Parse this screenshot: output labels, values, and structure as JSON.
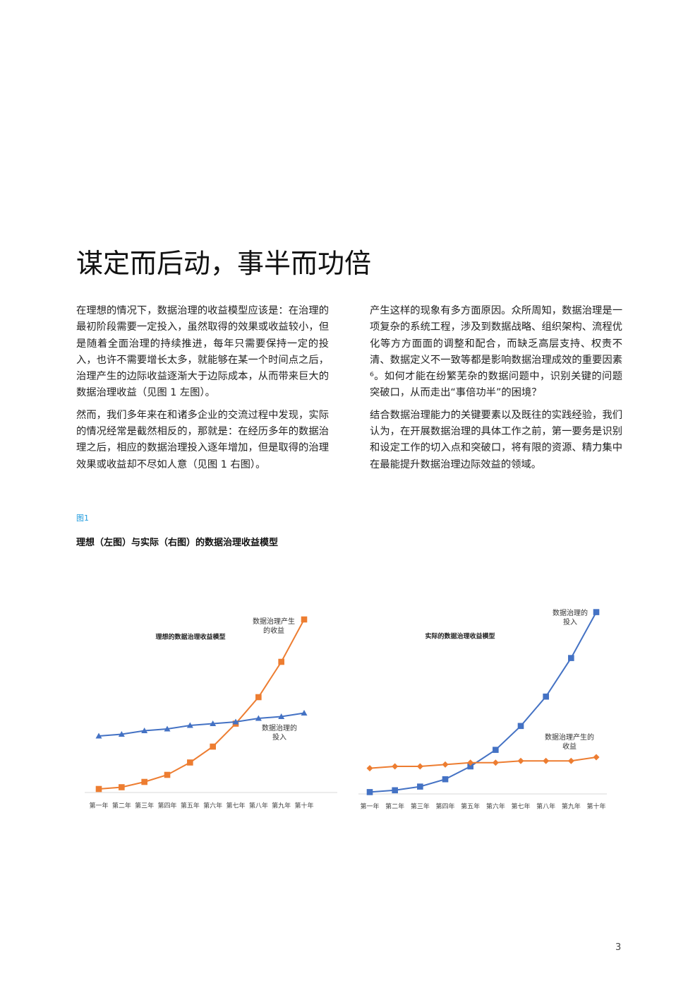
{
  "title": "谋定而后动，事半而功倍",
  "columns": [
    {
      "paragraphs": [
        "在理想的情况下，数据治理的收益模型应该是：在治理的最初阶段需要一定投入，虽然取得的效果或收益较小，但是随着全面治理的持续推进，每年只需要保持一定的投入，也许不需要增长太多，就能够在某一个时间点之后，治理产生的边际收益逐渐大于边际成本，从而带来巨大的数据治理收益（见图 1 左图）。",
        "然而，我们多年来在和诸多企业的交流过程中发现，实际的情况经常是截然相反的，那就是：在经历多年的数据治理之后，相应的数据治理投入逐年增加，但是取得的治理效果或收益却不尽如人意（见图 1 右图）。"
      ]
    },
    {
      "paragraphs": [
        "产生这样的现象有多方面原因。众所周知，数据治理是一项复杂的系统工程，涉及到数据战略、组织架构、流程优化等方方面面的调整和配合，而缺乏高层支持、权责不清、数据定义不一致等都是影响数据治理成效的重要因素⁶。如何才能在纷繁芜杂的数据问题中，识别关键的问题突破口，从而走出“事倍功半”的困境？",
        "结合数据治理能力的关键要素以及既往的实践经验，我们认为，在开展数据治理的具体工作之前，第一要务是识别和设定工作的切入点和突破口，将有限的资源、精力集中在最能提升数据治理边际效益的领域。"
      ]
    }
  ],
  "figure": {
    "label": "图1",
    "caption": "理想（左图）与实际（右图）的数据治理收益模型"
  },
  "chart_data": [
    {
      "type": "line",
      "title": "理想的数据治理收益模型",
      "categories": [
        "第一年",
        "第二年",
        "第三年",
        "第四年",
        "第五年",
        "第六年",
        "第七年",
        "第八年",
        "第九年",
        "第十年"
      ],
      "series": [
        {
          "name": "数据治理产生的收益",
          "color": "#ed7d31",
          "marker": "square",
          "values": [
            2,
            3,
            6,
            10,
            17,
            26,
            39,
            54,
            74,
            98
          ]
        },
        {
          "name": "数据治理的投入",
          "color": "#4472c4",
          "marker": "triangle",
          "values": [
            32,
            33,
            35,
            36,
            38,
            39,
            40,
            42,
            43,
            45
          ]
        }
      ],
      "ylim": [
        0,
        100
      ]
    },
    {
      "type": "line",
      "title": "实际的数据治理收益模型",
      "categories": [
        "第一年",
        "第二年",
        "第三年",
        "第四年",
        "第五年",
        "第六年",
        "第七年",
        "第八年",
        "第九年",
        "第十年"
      ],
      "series": [
        {
          "name": "数据治理的投入",
          "color": "#4472c4",
          "marker": "square",
          "values": [
            1,
            2,
            4,
            8,
            15,
            24,
            37,
            53,
            74,
            99
          ]
        },
        {
          "name": "数据治理产生的收益",
          "color": "#ed7d31",
          "marker": "diamond",
          "values": [
            14,
            15,
            15,
            16,
            17,
            17,
            18,
            18,
            18,
            20
          ]
        }
      ],
      "ylim": [
        0,
        100
      ]
    }
  ],
  "page_number": "3"
}
